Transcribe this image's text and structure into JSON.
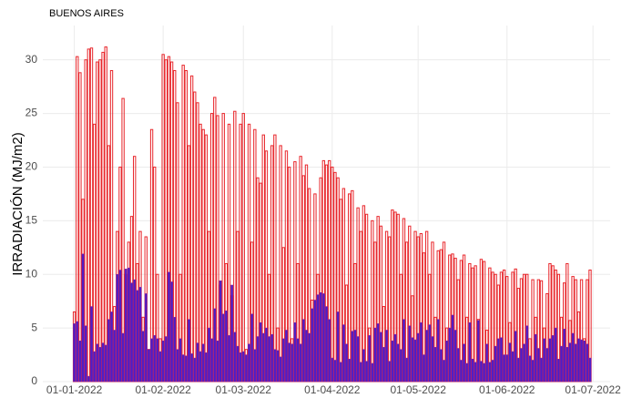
{
  "chart_data": {
    "type": "bar",
    "title": "BUENOS AIRES",
    "y_label": "IRRADIACIÓN (MJ/m2)",
    "x": [
      "2022-01-01",
      "2022-01-02",
      "2022-01-03",
      "2022-01-04",
      "2022-01-05",
      "2022-01-06",
      "2022-01-07",
      "2022-01-08",
      "2022-01-09",
      "2022-01-10",
      "2022-01-11",
      "2022-01-12",
      "2022-01-13",
      "2022-01-14",
      "2022-01-15",
      "2022-01-16",
      "2022-01-17",
      "2022-01-18",
      "2022-01-19",
      "2022-01-20",
      "2022-01-21",
      "2022-01-22",
      "2022-01-23",
      "2022-01-24",
      "2022-01-25",
      "2022-01-26",
      "2022-01-27",
      "2022-01-28",
      "2022-01-29",
      "2022-01-30",
      "2022-01-31",
      "2022-02-01",
      "2022-02-02",
      "2022-02-03",
      "2022-02-04",
      "2022-02-05",
      "2022-02-06",
      "2022-02-07",
      "2022-02-08",
      "2022-02-09",
      "2022-02-10",
      "2022-02-11",
      "2022-02-12",
      "2022-02-13",
      "2022-02-14",
      "2022-02-15",
      "2022-02-16",
      "2022-02-17",
      "2022-02-18",
      "2022-02-19",
      "2022-02-20",
      "2022-02-21",
      "2022-02-22",
      "2022-02-23",
      "2022-02-24",
      "2022-02-25",
      "2022-02-26",
      "2022-02-27",
      "2022-02-28",
      "2022-03-01",
      "2022-03-02",
      "2022-03-03",
      "2022-03-04",
      "2022-03-05",
      "2022-03-06",
      "2022-03-07",
      "2022-03-08",
      "2022-03-09",
      "2022-03-10",
      "2022-03-11",
      "2022-03-12",
      "2022-03-13",
      "2022-03-14",
      "2022-03-15",
      "2022-03-16",
      "2022-03-17",
      "2022-03-18",
      "2022-03-19",
      "2022-03-20",
      "2022-03-21",
      "2022-03-22",
      "2022-03-23",
      "2022-03-24",
      "2022-03-25",
      "2022-03-26",
      "2022-03-27",
      "2022-03-28",
      "2022-03-29",
      "2022-03-30",
      "2022-03-31",
      "2022-04-01",
      "2022-04-02",
      "2022-04-03",
      "2022-04-04",
      "2022-04-05",
      "2022-04-06",
      "2022-04-07",
      "2022-04-08",
      "2022-04-09",
      "2022-04-10",
      "2022-04-11",
      "2022-04-12",
      "2022-04-13",
      "2022-04-14",
      "2022-04-15",
      "2022-04-16",
      "2022-04-17",
      "2022-04-18",
      "2022-04-19",
      "2022-04-20",
      "2022-04-21",
      "2022-04-22",
      "2022-04-23",
      "2022-04-24",
      "2022-04-25",
      "2022-04-26",
      "2022-04-27",
      "2022-04-28",
      "2022-04-29",
      "2022-04-30",
      "2022-05-01",
      "2022-05-02",
      "2022-05-03",
      "2022-05-04",
      "2022-05-05",
      "2022-05-06",
      "2022-05-07",
      "2022-05-08",
      "2022-05-09",
      "2022-05-10",
      "2022-05-11",
      "2022-05-12",
      "2022-05-13",
      "2022-05-14",
      "2022-05-15",
      "2022-05-16",
      "2022-05-17",
      "2022-05-18",
      "2022-05-19",
      "2022-05-20",
      "2022-05-21",
      "2022-05-22",
      "2022-05-23",
      "2022-05-24",
      "2022-05-25",
      "2022-05-26",
      "2022-05-27",
      "2022-05-28",
      "2022-05-29",
      "2022-05-30",
      "2022-05-31",
      "2022-06-01",
      "2022-06-02",
      "2022-06-03",
      "2022-06-04",
      "2022-06-05",
      "2022-06-06",
      "2022-06-07",
      "2022-06-08",
      "2022-06-09",
      "2022-06-10",
      "2022-06-11",
      "2022-06-12",
      "2022-06-13",
      "2022-06-14",
      "2022-06-15",
      "2022-06-16",
      "2022-06-17",
      "2022-06-18",
      "2022-06-19",
      "2022-06-20",
      "2022-06-21",
      "2022-06-22",
      "2022-06-23",
      "2022-06-24",
      "2022-06-25",
      "2022-06-26",
      "2022-06-27",
      "2022-06-28",
      "2022-06-29",
      "2022-06-30"
    ],
    "series": [
      {
        "color": "#e8262b",
        "values": [
          6.5,
          30.3,
          28.8,
          17,
          30,
          31,
          31.1,
          24,
          29.8,
          30,
          30.7,
          31.2,
          22,
          29,
          7,
          14,
          20,
          26.4,
          10,
          13,
          15.4,
          21,
          11,
          14,
          6,
          13.5,
          3,
          23.5,
          20,
          10,
          4,
          30.5,
          30,
          30.3,
          29.8,
          29,
          26,
          10,
          29.5,
          29,
          22,
          28.5,
          27,
          26,
          24,
          23.5,
          23,
          14,
          25,
          26.5,
          24.8,
          9,
          25,
          11,
          24,
          8,
          25.2,
          14,
          24,
          25,
          3,
          24,
          13,
          23.5,
          19,
          18.5,
          23,
          21.5,
          10,
          22,
          23,
          5,
          22,
          12.5,
          21.5,
          20,
          4,
          20.5,
          11,
          21,
          19.2,
          20.2,
          18,
          7.6,
          17.5,
          10,
          19,
          20.6,
          20.2,
          20.6,
          20,
          19.5,
          19,
          17,
          18,
          9,
          17.5,
          17.8,
          11,
          16.2,
          14,
          16.4,
          15.6,
          5,
          15,
          13,
          15.4,
          14.5,
          7,
          14,
          13.5,
          16,
          15.8,
          15.6,
          10,
          15.2,
          13,
          14.5,
          8,
          14,
          13.5,
          13.8,
          12,
          14,
          10,
          13,
          6,
          12.2,
          12.3,
          13,
          5,
          11.8,
          11.9,
          11.5,
          9.5,
          11.3,
          11.8,
          6,
          11,
          10.6,
          10.8,
          5.8,
          11.4,
          11.2,
          4.8,
          10.6,
          10.2,
          10,
          9,
          10.2,
          10.4,
          9.8,
          5.5,
          10.2,
          10.5,
          8.7,
          9.6,
          10,
          10,
          4,
          9.5,
          6,
          9.5,
          9.4,
          5,
          8.2,
          11,
          10.8,
          10.4,
          10,
          6,
          9.2,
          11,
          5.7,
          9.8,
          9.5,
          6.5,
          9.5,
          4,
          9.5,
          10.4
        ]
      },
      {
        "color": "#4b1fc8",
        "values": [
          5.4,
          5.6,
          3.8,
          11.9,
          5.2,
          0.5,
          7,
          2.8,
          3.5,
          3.2,
          3.6,
          3.4,
          5.8,
          6.5,
          4.8,
          10,
          10.4,
          4.5,
          10.5,
          10.6,
          9.2,
          9.5,
          8.5,
          8.8,
          4.7,
          8.2,
          3,
          4,
          4.3,
          4,
          2.8,
          3.8,
          4.2,
          10.2,
          9.3,
          6,
          3,
          4,
          2.5,
          2.4,
          5.8,
          2.6,
          2.2,
          3.6,
          2.8,
          3.5,
          2.7,
          5,
          4,
          6.8,
          3.8,
          9.4,
          6.3,
          6.6,
          4.3,
          9,
          4.6,
          3.3,
          2.7,
          2.8,
          2.5,
          3.5,
          6.3,
          3,
          4.2,
          5.5,
          4.5,
          5,
          4.2,
          4.4,
          3,
          2.9,
          2.3,
          4,
          4.8,
          3.6,
          3.5,
          5.5,
          4,
          3.5,
          5.8,
          4.8,
          4.5,
          6.8,
          7.6,
          8.1,
          8.3,
          8.2,
          7,
          5.8,
          2.2,
          2,
          6.5,
          1.8,
          5.3,
          3.5,
          2.1,
          4.7,
          4.8,
          4.2,
          1.8,
          3,
          1.9,
          4.3,
          1.7,
          5,
          5.4,
          4.6,
          3.2,
          4.8,
          1.9,
          3.8,
          4.4,
          3.5,
          3,
          5.8,
          2.2,
          5.2,
          4.1,
          3.9,
          4.5,
          5.5,
          2.5,
          4.8,
          5.3,
          4.2,
          3.2,
          5.8,
          3,
          2,
          3.8,
          5,
          6.2,
          4.8,
          3.1,
          2,
          3.5,
          1.7,
          5.5,
          2.1,
          1.8,
          5.7,
          1.9,
          1.7,
          3.5,
          1.8,
          2,
          3.3,
          4,
          4.1,
          2.5,
          2.5,
          3.6,
          2.8,
          4.7,
          2.2,
          3.1,
          3.5,
          5.2,
          2.4,
          2,
          4.4,
          3.1,
          2.2,
          4,
          3.1,
          4,
          4.3,
          5,
          2.1,
          3.3,
          4.9,
          3.2,
          3.6,
          4.5,
          3.5,
          4,
          3.9,
          3.8,
          3.5,
          2.2
        ]
      }
    ],
    "xlim": [
      "2021-12-21",
      "2022-07-07"
    ],
    "xticks": [
      {
        "value": "2022-01-01",
        "label": "01-01-2022"
      },
      {
        "value": "2022-02-01",
        "label": "01-02-2022"
      },
      {
        "value": "2022-03-01",
        "label": "01-03-2022"
      },
      {
        "value": "2022-04-01",
        "label": "01-04-2022"
      },
      {
        "value": "2022-05-01",
        "label": "01-05-2022"
      },
      {
        "value": "2022-06-01",
        "label": "01-06-2022"
      },
      {
        "value": "2022-07-01",
        "label": "01-07-2022"
      }
    ],
    "ylim": [
      0,
      33.2
    ],
    "yticks": [
      0,
      5,
      10,
      15,
      20,
      25,
      30
    ],
    "grid": true
  }
}
